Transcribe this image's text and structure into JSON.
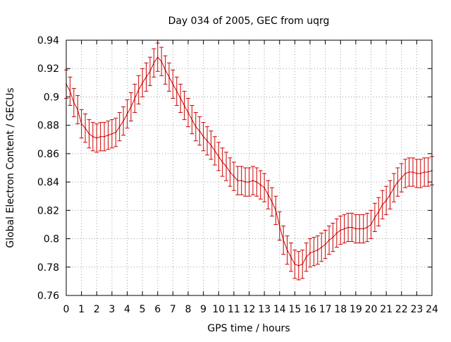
{
  "chart_data": {
    "type": "line",
    "title": "Day 034 of 2005, GEC from uqrg",
    "xlabel": "GPS time / hours",
    "ylabel": "Global Electron Content / GECUs",
    "xlim": [
      0,
      24
    ],
    "ylim": [
      0.76,
      0.94
    ],
    "x_ticks": [
      0,
      1,
      2,
      3,
      4,
      5,
      6,
      7,
      8,
      9,
      10,
      11,
      12,
      13,
      14,
      15,
      16,
      17,
      18,
      19,
      20,
      21,
      22,
      23,
      24
    ],
    "y_ticks": [
      0.76,
      0.78,
      0.8,
      0.82,
      0.84,
      0.86,
      0.88,
      0.9,
      0.92,
      0.94
    ],
    "y_tick_labels": [
      "0.76",
      "0.78",
      "0.8",
      "0.82",
      "0.84",
      "0.86",
      "0.88",
      "0.9",
      "0.92",
      "0.94"
    ],
    "grid": true,
    "series": [
      {
        "name": "GEC",
        "color": "#cc0000",
        "error_bars": true,
        "error": 0.01,
        "x": [
          0,
          0.25,
          0.5,
          0.75,
          1,
          1.25,
          1.5,
          1.75,
          2,
          2.25,
          2.5,
          2.75,
          3,
          3.25,
          3.5,
          3.75,
          4,
          4.25,
          4.5,
          4.75,
          5,
          5.25,
          5.5,
          5.75,
          6,
          6.25,
          6.5,
          6.75,
          7,
          7.25,
          7.5,
          7.75,
          8,
          8.25,
          8.5,
          8.75,
          9,
          9.25,
          9.5,
          9.75,
          10,
          10.25,
          10.5,
          10.75,
          11,
          11.25,
          11.5,
          11.75,
          12,
          12.25,
          12.5,
          12.75,
          13,
          13.25,
          13.5,
          13.75,
          14,
          14.25,
          14.5,
          14.75,
          15,
          15.25,
          15.5,
          15.75,
          16,
          16.25,
          16.5,
          16.75,
          17,
          17.25,
          17.5,
          17.75,
          18,
          18.25,
          18.5,
          18.75,
          19,
          19.25,
          19.5,
          19.75,
          20,
          20.25,
          20.5,
          20.75,
          21,
          21.25,
          21.5,
          21.75,
          22,
          22.25,
          22.5,
          22.75,
          23,
          23.25,
          23.5,
          23.75,
          24
        ],
        "values": [
          0.909,
          0.904,
          0.896,
          0.891,
          0.881,
          0.878,
          0.874,
          0.872,
          0.871,
          0.872,
          0.872,
          0.873,
          0.874,
          0.875,
          0.879,
          0.883,
          0.888,
          0.893,
          0.899,
          0.905,
          0.91,
          0.914,
          0.918,
          0.924,
          0.928,
          0.925,
          0.919,
          0.914,
          0.909,
          0.904,
          0.899,
          0.894,
          0.889,
          0.884,
          0.879,
          0.876,
          0.872,
          0.869,
          0.866,
          0.862,
          0.858,
          0.854,
          0.851,
          0.847,
          0.844,
          0.841,
          0.841,
          0.84,
          0.84,
          0.841,
          0.84,
          0.838,
          0.836,
          0.831,
          0.826,
          0.82,
          0.809,
          0.799,
          0.792,
          0.787,
          0.782,
          0.781,
          0.782,
          0.787,
          0.79,
          0.791,
          0.792,
          0.794,
          0.796,
          0.799,
          0.801,
          0.804,
          0.806,
          0.807,
          0.808,
          0.808,
          0.807,
          0.807,
          0.807,
          0.808,
          0.81,
          0.815,
          0.819,
          0.824,
          0.827,
          0.831,
          0.836,
          0.84,
          0.843,
          0.846,
          0.847,
          0.847,
          0.846,
          0.846,
          0.847,
          0.847,
          0.848
        ]
      }
    ]
  }
}
